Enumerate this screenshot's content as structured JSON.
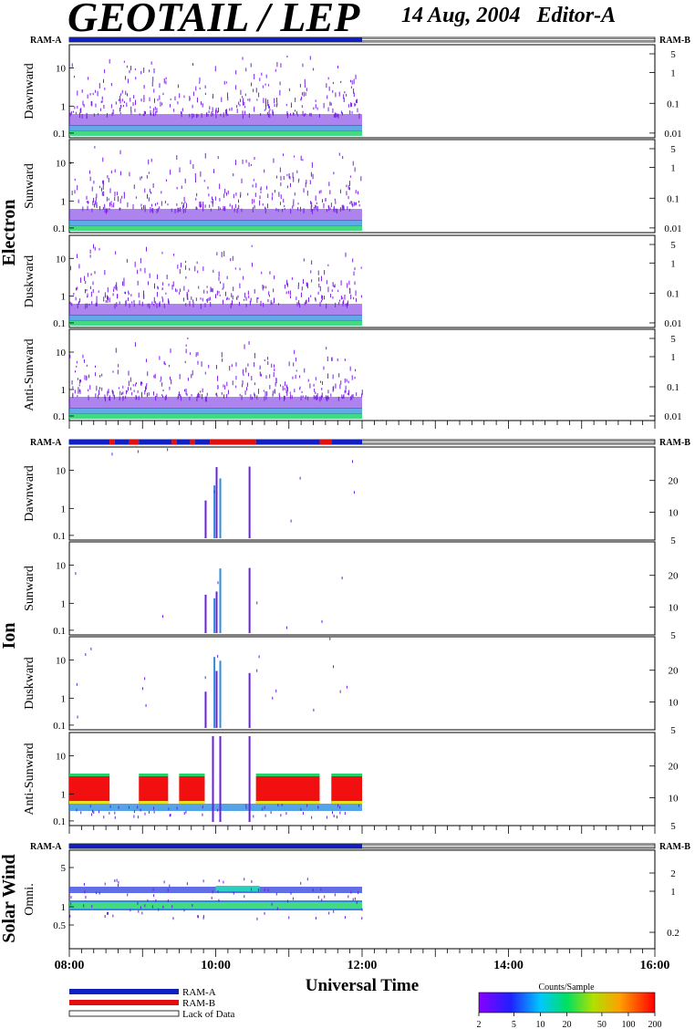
{
  "header": {
    "title": "GEOTAIL / LEP",
    "date_editor": "14 Aug, 2004   Editor-A"
  },
  "axis": {
    "x_label": "Universal Time",
    "x_ticks": [
      "08:00",
      "10:00",
      "12:00",
      "14:00",
      "16:00"
    ],
    "x_range_hours": [
      8,
      16
    ],
    "data_end_hour": 12
  },
  "ram_labels": {
    "a": "RAM-A",
    "b": "RAM-B"
  },
  "groups": [
    {
      "name": "Electron",
      "panels": [
        "Dawnward",
        "Sunward",
        "Duskward",
        "Anti-Sunward"
      ]
    },
    {
      "name": "Ion",
      "panels": [
        "Dawnward",
        "Sunward",
        "Duskward",
        "Anti-Sunward"
      ]
    },
    {
      "name": "Solar Wind",
      "panels": [
        "Omni."
      ]
    }
  ],
  "left_ticks": {
    "electron": [
      "10",
      "1",
      "0.1"
    ],
    "ion": [
      "10",
      "1",
      "0.1"
    ],
    "solar": [
      "5",
      "1",
      "0.5"
    ]
  },
  "right_ticks": {
    "electron": [
      "5",
      "1",
      "0.1",
      "0.01"
    ],
    "ion": [
      "20",
      "10",
      "5"
    ],
    "solar": [
      "2",
      "1",
      "0.2"
    ]
  },
  "legend": {
    "ram_a": "RAM-A",
    "ram_b": "RAM-B",
    "lack": "Lack of Data"
  },
  "colorbar": {
    "title": "Counts/Sample",
    "ticks": [
      "2",
      "5",
      "10",
      "20",
      "50",
      "100",
      "200"
    ]
  },
  "colors": {
    "ram_a": "#1020c0",
    "ram_b": "#e01010"
  },
  "chart_data": {
    "type": "heatmap",
    "title": "GEOTAIL / LEP",
    "xlabel": "Universal Time",
    "x_ticks": [
      "08:00",
      "10:00",
      "12:00",
      "14:00",
      "16:00"
    ],
    "ram_bars": {
      "electron": [
        {
          "mode": "RAM-A",
          "from": 8.0,
          "to": 12.0
        },
        {
          "mode": "Lack of Data",
          "from": 12.0,
          "to": 16.0
        }
      ],
      "ion": [
        {
          "mode": "RAM-A",
          "from": 8.0,
          "to": 8.55
        },
        {
          "mode": "RAM-B",
          "from": 8.55,
          "to": 8.62
        },
        {
          "mode": "RAM-A",
          "from": 8.62,
          "to": 8.82
        },
        {
          "mode": "RAM-B",
          "from": 8.82,
          "to": 8.95
        },
        {
          "mode": "RAM-A",
          "from": 8.95,
          "to": 9.4
        },
        {
          "mode": "RAM-B",
          "from": 9.4,
          "to": 9.47
        },
        {
          "mode": "RAM-A",
          "from": 9.47,
          "to": 9.65
        },
        {
          "mode": "RAM-B",
          "from": 9.65,
          "to": 9.72
        },
        {
          "mode": "RAM-A",
          "from": 9.72,
          "to": 9.92
        },
        {
          "mode": "RAM-B",
          "from": 9.92,
          "to": 10.55
        },
        {
          "mode": "RAM-A",
          "from": 10.55,
          "to": 11.42
        },
        {
          "mode": "RAM-B",
          "from": 11.42,
          "to": 11.58
        },
        {
          "mode": "RAM-A",
          "from": 11.58,
          "to": 12.0
        },
        {
          "mode": "Lack of Data",
          "from": 12.0,
          "to": 16.0
        }
      ],
      "solar": [
        {
          "mode": "RAM-A",
          "from": 8.0,
          "to": 12.0
        },
        {
          "mode": "Lack of Data",
          "from": 12.0,
          "to": 16.0
        }
      ]
    },
    "ion_anti_sunward_red_blocks_hours": [
      [
        8.0,
        8.55
      ],
      [
        8.95,
        9.35
      ],
      [
        9.5,
        9.85
      ],
      [
        10.55,
        11.42
      ],
      [
        11.58,
        12.0
      ]
    ],
    "colorbar_range": [
      2,
      200
    ],
    "colorbar_scale": "log"
  }
}
